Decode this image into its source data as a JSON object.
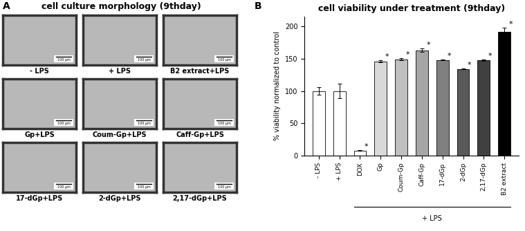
{
  "panel_a": {
    "label": "A",
    "title": "cell culture morphology (9thday)",
    "images": [
      {
        "label": "- LPS",
        "scale_bar": "100 µm"
      },
      {
        "label": "+ LPS",
        "scale_bar": "100 µm"
      },
      {
        "label": "B2 extract+LPS",
        "scale_bar": "100 µm"
      },
      {
        "label": "Gp+LPS",
        "scale_bar": "100 µm"
      },
      {
        "label": "Coum-Gp+LPS",
        "scale_bar": "100 µm"
      },
      {
        "label": "Caff-Gp+LPS",
        "scale_bar": "100 µm"
      },
      {
        "label": "17-dGp+LPS",
        "scale_bar": "100 µm"
      },
      {
        "label": "2-dGp+LPS",
        "scale_bar": "100 µm"
      },
      {
        "label": "2,17-dGp+LPS",
        "scale_bar": "100 µm"
      }
    ]
  },
  "panel_b_label": "B",
  "chart_data": {
    "type": "bar",
    "title": "cell viability under treatment (9thday)",
    "y_label": "% viability normalized to control",
    "categories": [
      "- LPS",
      "+ LPS",
      "DOX",
      "Gp",
      "Coum-Gp",
      "Caff-Gp",
      "17-dGp",
      "2-dGp",
      "2,17-dGp",
      "B2 extract"
    ],
    "values": [
      100,
      100,
      8,
      146,
      149,
      163,
      148,
      134,
      148,
      192
    ],
    "errors": [
      6,
      11,
      1,
      1.5,
      1.5,
      3,
      0.5,
      0.5,
      1,
      6
    ],
    "significance": [
      null,
      null,
      "*",
      "*",
      "*",
      "*",
      "*",
      "*",
      "*",
      "*"
    ],
    "group_label": {
      "text": "+ LPS",
      "from": "DOX",
      "to": "B2 extract"
    },
    "colors": [
      "#ffffff",
      "#ffffff",
      "#ffffff",
      "#d9d9d9",
      "#bfbfbf",
      "#a6a6a6",
      "#808080",
      "#595959",
      "#404040",
      "#000000"
    ],
    "ylim": [
      0,
      215
    ],
    "yticks": [
      0,
      50,
      100,
      150,
      200
    ],
    "grid": false
  }
}
